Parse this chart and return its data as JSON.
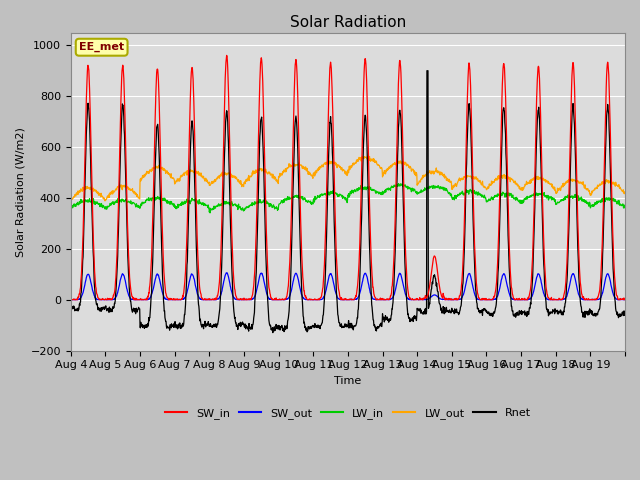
{
  "title": "Solar Radiation",
  "ylabel": "Solar Radiation (W/m2)",
  "xlabel": "Time",
  "ylim": [
    -200,
    1050
  ],
  "yticks": [
    -200,
    0,
    200,
    400,
    600,
    800,
    1000
  ],
  "fig_bg_color": "#c8c8c8",
  "plot_bg_color": "#dcdcdc",
  "legend_entries": [
    "SW_in",
    "SW_out",
    "LW_in",
    "LW_out",
    "Rnet"
  ],
  "line_colors": [
    "#ff0000",
    "#0000ff",
    "#00cc00",
    "#ffa500",
    "#000000"
  ],
  "station_label": "EE_met",
  "n_days": 16,
  "tick_labels": [
    "Aug 4",
    "Aug 5",
    "Aug 6",
    "Aug 7",
    "Aug 8",
    "Aug 9",
    "Aug 10",
    "Aug 11",
    "Aug 12",
    "Aug 13",
    "Aug 14",
    "Aug 15",
    "Aug 16",
    "Aug 17",
    "Aug 18",
    "Aug 19"
  ]
}
